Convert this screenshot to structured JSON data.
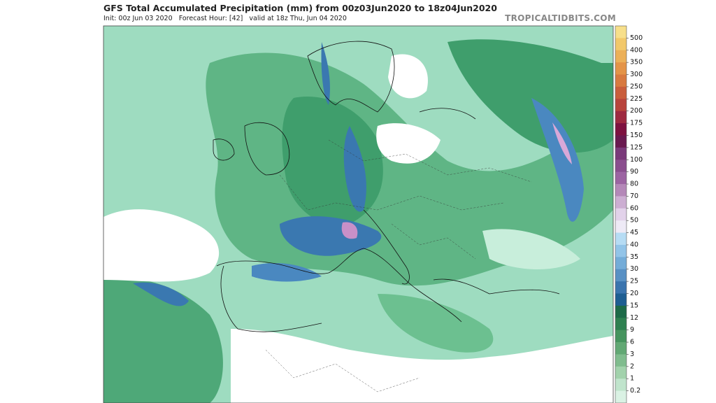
{
  "header": {
    "title": "GFS Total Accumulated Precipitation (mm) from 00z03Jun2020 to 18z04Jun2020",
    "subtitle": "Init: 00z Jun 03 2020   Forecast Hour: [42]   valid at 18z Thu, Jun 04 2020",
    "watermark": "TROPICALTIDBITS.COM"
  },
  "colorbar": {
    "labels": [
      "500",
      "400",
      "350",
      "300",
      "250",
      "225",
      "200",
      "175",
      "150",
      "125",
      "100",
      "90",
      "80",
      "70",
      "60",
      "50",
      "45",
      "40",
      "35",
      "30",
      "25",
      "20",
      "15",
      "12",
      "9",
      "6",
      "3",
      "2",
      "1",
      "0.2"
    ]
  }
}
